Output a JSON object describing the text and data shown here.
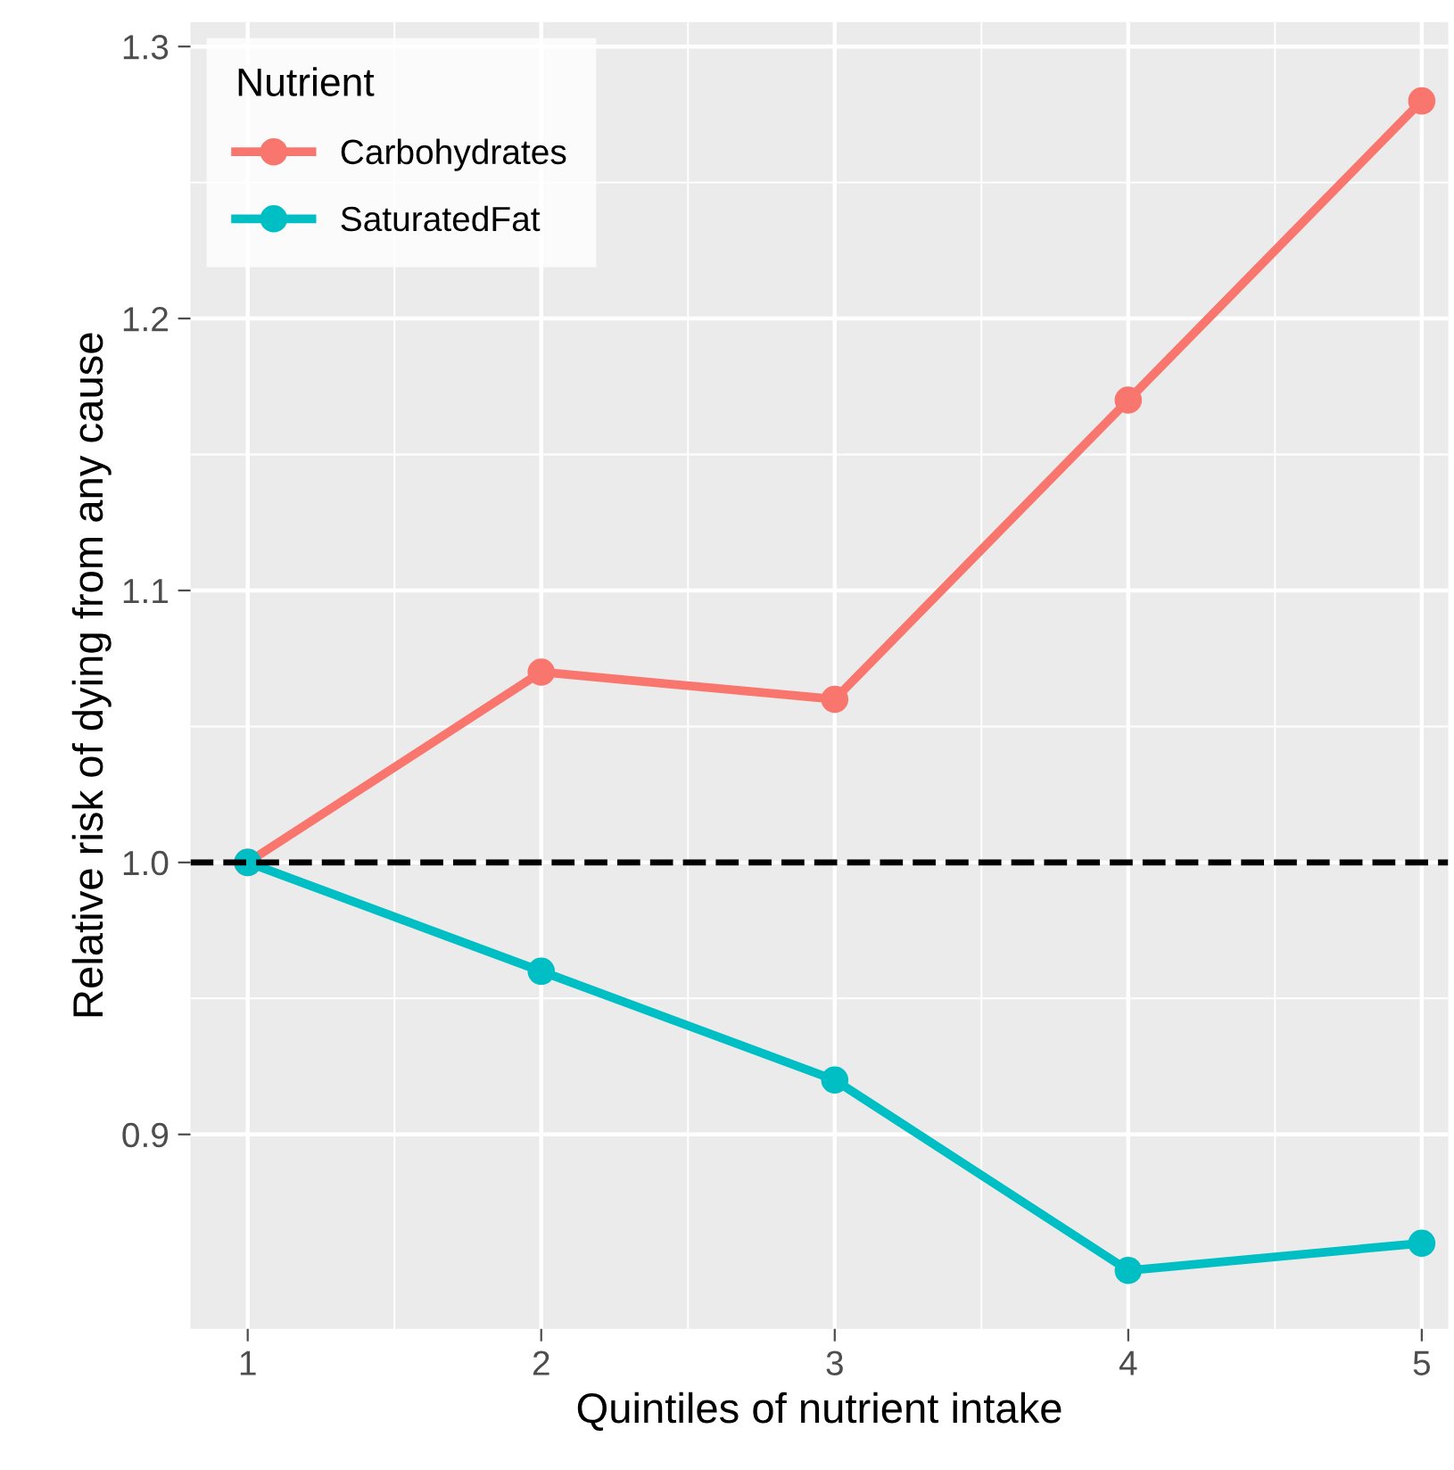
{
  "chart_data": {
    "type": "line",
    "xlabel": "Quintiles of nutrient intake",
    "ylabel": "Relative risk of dying from any cause",
    "legend_title": "Nutrient",
    "x": [
      1,
      2,
      3,
      4,
      5
    ],
    "series": [
      {
        "name": "Carbohydrates",
        "color": "#f8766d",
        "values": [
          1.0,
          1.07,
          1.06,
          1.17,
          1.28
        ]
      },
      {
        "name": "SaturatedFat",
        "color": "#00bfc4",
        "values": [
          1.0,
          0.96,
          0.92,
          0.85,
          0.86
        ]
      }
    ],
    "xlim": [
      0.805,
      5.09
    ],
    "xticks": [
      1,
      2,
      3,
      4,
      5
    ],
    "ylim": [
      0.8285,
      1.309
    ],
    "yticks": [
      0.9,
      {
        "value": 1,
        "label": "1.0"
      },
      1.1,
      1.2,
      1.3
    ],
    "ref_lines": [
      {
        "axis": "y",
        "value": 1.0,
        "color": "#000000",
        "line_style": "dashed"
      }
    ],
    "grid": true,
    "legend": "top left",
    "marker": "circle",
    "line_style": "solid"
  }
}
